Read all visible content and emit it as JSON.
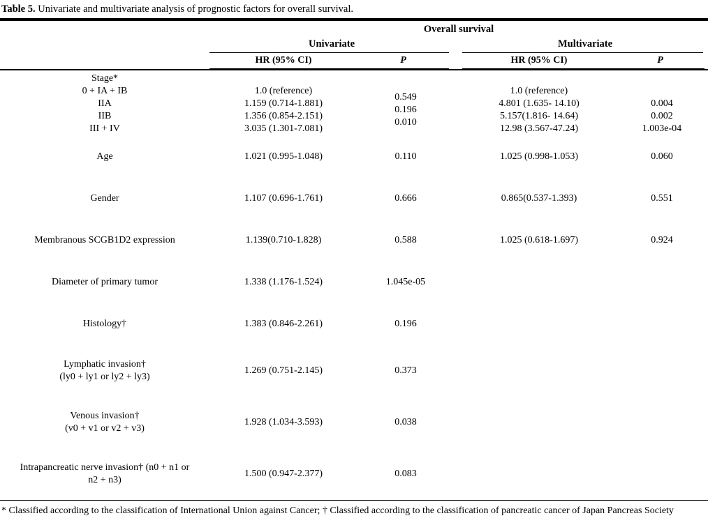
{
  "title": {
    "label": "Table 5.",
    "text": "Univariate and multivariate analysis of prognostic factors for overall survival."
  },
  "header": {
    "overall": "Overall survival",
    "groups": [
      {
        "name": "Univariate"
      },
      {
        "name": "Multivariate"
      }
    ],
    "hr_label": "HR (95% CI)",
    "p_label": "P"
  },
  "rows": [
    {
      "factor": [
        "Stage*",
        "0 + IA + IB",
        "IIA",
        "IIB",
        "III + IV"
      ],
      "uni_hr": [
        "",
        "1.0 (reference)",
        "1.159 (0.714-1.881)",
        "1.356 (0.854-2.151)",
        "3.035 (1.301-7.081)"
      ],
      "uni_p": [
        "0.549",
        "0.196",
        "0.010"
      ],
      "straddle_uni_p": true,
      "multi_hr": [
        "",
        "1.0 (reference)",
        "4.801 (1.635- 14.10)",
        "5.157(1.816- 14.64)",
        "12.98 (3.567-47.24)"
      ],
      "multi_p": [
        "",
        "",
        "0.004",
        "0.002",
        "1.003e-04"
      ]
    },
    {
      "factor": [
        "Age"
      ],
      "uni_hr": [
        "1.021 (0.995-1.048)"
      ],
      "uni_p": [
        "0.110"
      ],
      "multi_hr": [
        "1.025 (0.998-1.053)"
      ],
      "multi_p": [
        "0.060"
      ]
    },
    {
      "factor": [
        "Gender"
      ],
      "uni_hr": [
        "1.107 (0.696-1.761)"
      ],
      "uni_p": [
        "0.666"
      ],
      "multi_hr": [
        "0.865(0.537-1.393)"
      ],
      "multi_p": [
        "0.551"
      ]
    },
    {
      "factor": [
        "Membranous SCGB1D2 expression"
      ],
      "uni_hr": [
        "1.139(0.710-1.828)"
      ],
      "uni_p": [
        "0.588"
      ],
      "multi_hr": [
        "1.025 (0.618-1.697)"
      ],
      "multi_p": [
        "0.924"
      ]
    },
    {
      "factor": [
        "Diameter of primary tumor"
      ],
      "uni_hr": [
        "1.338 (1.176-1.524)"
      ],
      "uni_p": [
        "1.045e-05"
      ],
      "multi_hr": [],
      "multi_p": []
    },
    {
      "factor": [
        "Histology†"
      ],
      "uni_hr": [
        "1.383 (0.846-2.261)"
      ],
      "uni_p": [
        "0.196"
      ],
      "multi_hr": [],
      "multi_p": []
    },
    {
      "factor": [
        "Lymphatic invasion†",
        "(ly0 + ly1 or ly2 + ly3)"
      ],
      "uni_hr": [
        "1.269 (0.751-2.145)"
      ],
      "uni_p": [
        "0.373"
      ],
      "multi_hr": [],
      "multi_p": []
    },
    {
      "factor": [
        "Venous invasion†",
        "(v0 + v1 or v2 + v3)"
      ],
      "uni_hr": [
        "1.928 (1.034-3.593)"
      ],
      "uni_p": [
        "0.038"
      ],
      "multi_hr": [],
      "multi_p": []
    },
    {
      "factor": [
        "Intrapancreatic nerve invasion† (n0 + n1 or",
        "n2 + n3)"
      ],
      "uni_hr": [
        "1.500 (0.947-2.377)"
      ],
      "uni_p": [
        "0.083"
      ],
      "multi_hr": [],
      "multi_p": []
    }
  ],
  "footnote": "* Classified according to the classification of International Union against Cancer; † Classified according to the classification of pancreatic cancer of Japan Pancreas Society"
}
